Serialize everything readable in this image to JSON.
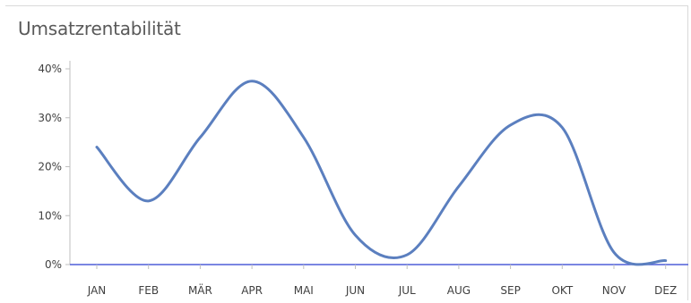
{
  "chart_data": {
    "type": "line",
    "title": "Umsatzrentabilität",
    "xlabel": "",
    "ylabel": "",
    "categories": [
      "JAN",
      "FEB",
      "MÄR",
      "APR",
      "MAI",
      "JUN",
      "JUL",
      "AUG",
      "SEP",
      "OKT",
      "NOV",
      "DEZ"
    ],
    "series": [
      {
        "values": [
          24,
          13,
          26,
          37.5,
          26,
          6,
          2,
          16,
          28.5,
          28,
          2.5,
          0.8
        ]
      }
    ],
    "y_ticks": [
      "0%",
      "10%",
      "20%",
      "30%",
      "40%"
    ],
    "ylim": [
      0,
      40
    ],
    "smooth": true,
    "grid": false,
    "legend": "none",
    "colors": {
      "line": "#5b7fbf",
      "x_axis": "#4f5fd8",
      "y_axis": "#bfbfbf",
      "title": "#595959"
    }
  }
}
